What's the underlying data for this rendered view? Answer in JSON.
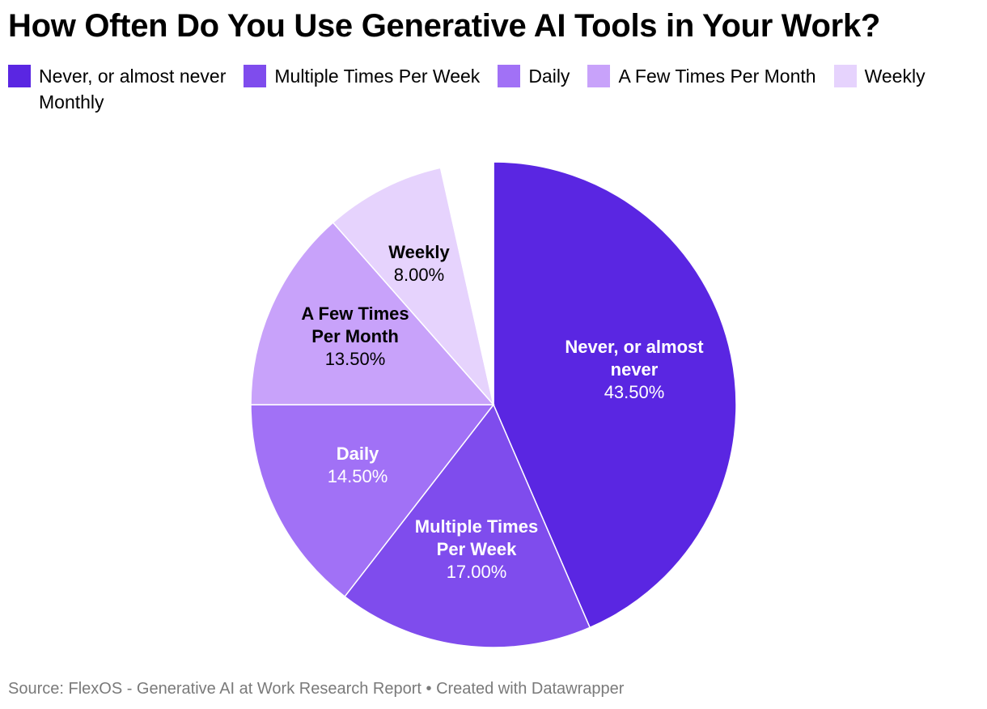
{
  "title": "How Often Do You Use Generative AI Tools in Your Work?",
  "legend": [
    {
      "label": "Never, or almost never",
      "color": "#5a26e2"
    },
    {
      "label": "Multiple Times Per Week",
      "color": "#7f4ced"
    },
    {
      "label": "Daily",
      "color": "#a171f6"
    },
    {
      "label": "A Few Times Per Month",
      "color": "#c8a2fa"
    },
    {
      "label": "Weekly",
      "color": "#e6d3fd"
    },
    {
      "label": "Monthly",
      "color": "#ffffff"
    }
  ],
  "source": "Source: FlexOS - Generative AI at Work Research Report • Created with Datawrapper",
  "chart_data": {
    "type": "pie",
    "slices": [
      {
        "label": "Never, or almost never",
        "value": 43.5,
        "value_text": "43.50%",
        "color": "#5a26e2",
        "label_lines": [
          "Never, or almost",
          "never"
        ],
        "text_color": "#ffffff"
      },
      {
        "label": "Multiple Times Per Week",
        "value": 17.0,
        "value_text": "17.00%",
        "color": "#7f4ced",
        "label_lines": [
          "Multiple Times",
          "Per Week"
        ],
        "text_color": "#ffffff"
      },
      {
        "label": "Daily",
        "value": 14.5,
        "value_text": "14.50%",
        "color": "#a171f6",
        "label_lines": [
          "Daily"
        ],
        "text_color": "#ffffff"
      },
      {
        "label": "A Few Times Per Month",
        "value": 13.5,
        "value_text": "13.50%",
        "color": "#c8a2fa",
        "label_lines": [
          "A Few Times",
          "Per Month"
        ],
        "text_color": "#000000"
      },
      {
        "label": "Weekly",
        "value": 8.0,
        "value_text": "8.00%",
        "color": "#e6d3fd",
        "label_lines": [
          "Weekly"
        ],
        "text_color": "#000000"
      },
      {
        "label": "Monthly",
        "value": 3.5,
        "value_text": "",
        "color": "#ffffff",
        "label_lines": [],
        "text_color": "#000000"
      }
    ]
  }
}
